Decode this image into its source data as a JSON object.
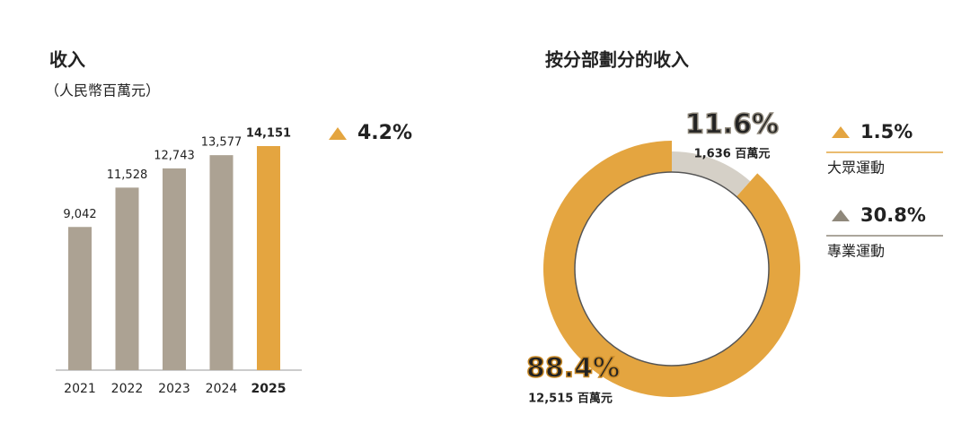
{
  "chart_data": [
    {
      "type": "bar",
      "title": "收入",
      "subtitle": "（人民幣百萬元）",
      "categories": [
        "2021",
        "2022",
        "2023",
        "2024",
        "2025"
      ],
      "values": [
        9042,
        11528,
        12743,
        13577,
        14151
      ],
      "value_labels": [
        "9,042",
        "11,528",
        "12,743",
        "13,577",
        "14,151"
      ],
      "colors": [
        "#aca293",
        "#aca293",
        "#aca293",
        "#aca293",
        "#e4a540"
      ],
      "growth": 4.2,
      "growth_label": "4.2%",
      "growth_color": "#e4a540"
    },
    {
      "type": "pie",
      "title": "按分部劃分的收入",
      "categories": [
        "大眾運動",
        "專業運動"
      ],
      "values": [
        88.4,
        11.6
      ],
      "value_labels": [
        "88.4%",
        "11.6%"
      ],
      "amounts": [
        12515,
        1636
      ],
      "amount_labels": [
        "12,515 百萬元",
        "1,636 百萬元"
      ],
      "growth": [
        1.5,
        30.8
      ],
      "growth_labels": [
        "1.5%",
        "30.8%"
      ],
      "colors": [
        "#e4a540",
        "#d5d0c7"
      ],
      "legend_colors": [
        "#e4a540",
        "#8f887b"
      ]
    }
  ]
}
